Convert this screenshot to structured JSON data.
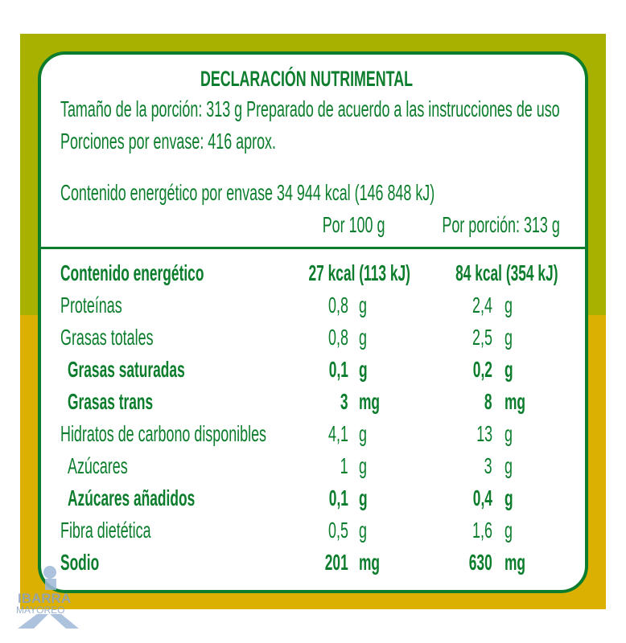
{
  "label": {
    "title": "DECLARACIÓN NUTRIMENTAL",
    "serving_size": "Tamaño de la porción: 313 g Preparado de acuerdo a las instrucciones de uso",
    "servings": "Porciones por envase: 416 aprox.",
    "energy_per_package": "Contenido energético por envase 34 944 kcal (146 848 kJ)",
    "col_per100": "Por 100 g",
    "col_portion": "Por porción: 313 g",
    "energy": {
      "label": "Contenido energético",
      "per100": "27 kcal (113 kJ)",
      "portion": "84 kcal (354 kJ)"
    },
    "rows": [
      {
        "label": "Proteínas",
        "per100": "0,8",
        "portion": "2,4",
        "unit": "g",
        "bold": false,
        "indent": false
      },
      {
        "label": "Grasas totales",
        "per100": "0,8",
        "portion": "2,5",
        "unit": "g",
        "bold": false,
        "indent": false
      },
      {
        "label": "Grasas saturadas",
        "per100": "0,1",
        "portion": "0,2",
        "unit": "g",
        "bold": true,
        "indent": true
      },
      {
        "label": "Grasas trans",
        "per100": "3",
        "portion": "8",
        "unit": "mg",
        "bold": true,
        "indent": true
      },
      {
        "label": "Hidratos de carbono disponibles",
        "per100": "4,1",
        "portion": "13",
        "unit": "g",
        "bold": false,
        "indent": false
      },
      {
        "label": "Azúcares",
        "per100": "1",
        "portion": "3",
        "unit": "g",
        "bold": false,
        "indent": true
      },
      {
        "label": "Azúcares añadidos",
        "per100": "0,1",
        "portion": "0,4",
        "unit": "g",
        "bold": true,
        "indent": true
      },
      {
        "label": "Fibra dietética",
        "per100": "0,5",
        "portion": "1,6",
        "unit": "g",
        "bold": false,
        "indent": false
      },
      {
        "label": "Sodio",
        "per100": "201",
        "portion": "630",
        "unit": "mg",
        "bold": true,
        "indent": false
      }
    ]
  },
  "watermark": {
    "line1": "IBARRA",
    "line2": "MAYOREO"
  },
  "colors": {
    "green": "#0b7d2c",
    "olive": "#a8b100",
    "gold": "#dcb000"
  }
}
